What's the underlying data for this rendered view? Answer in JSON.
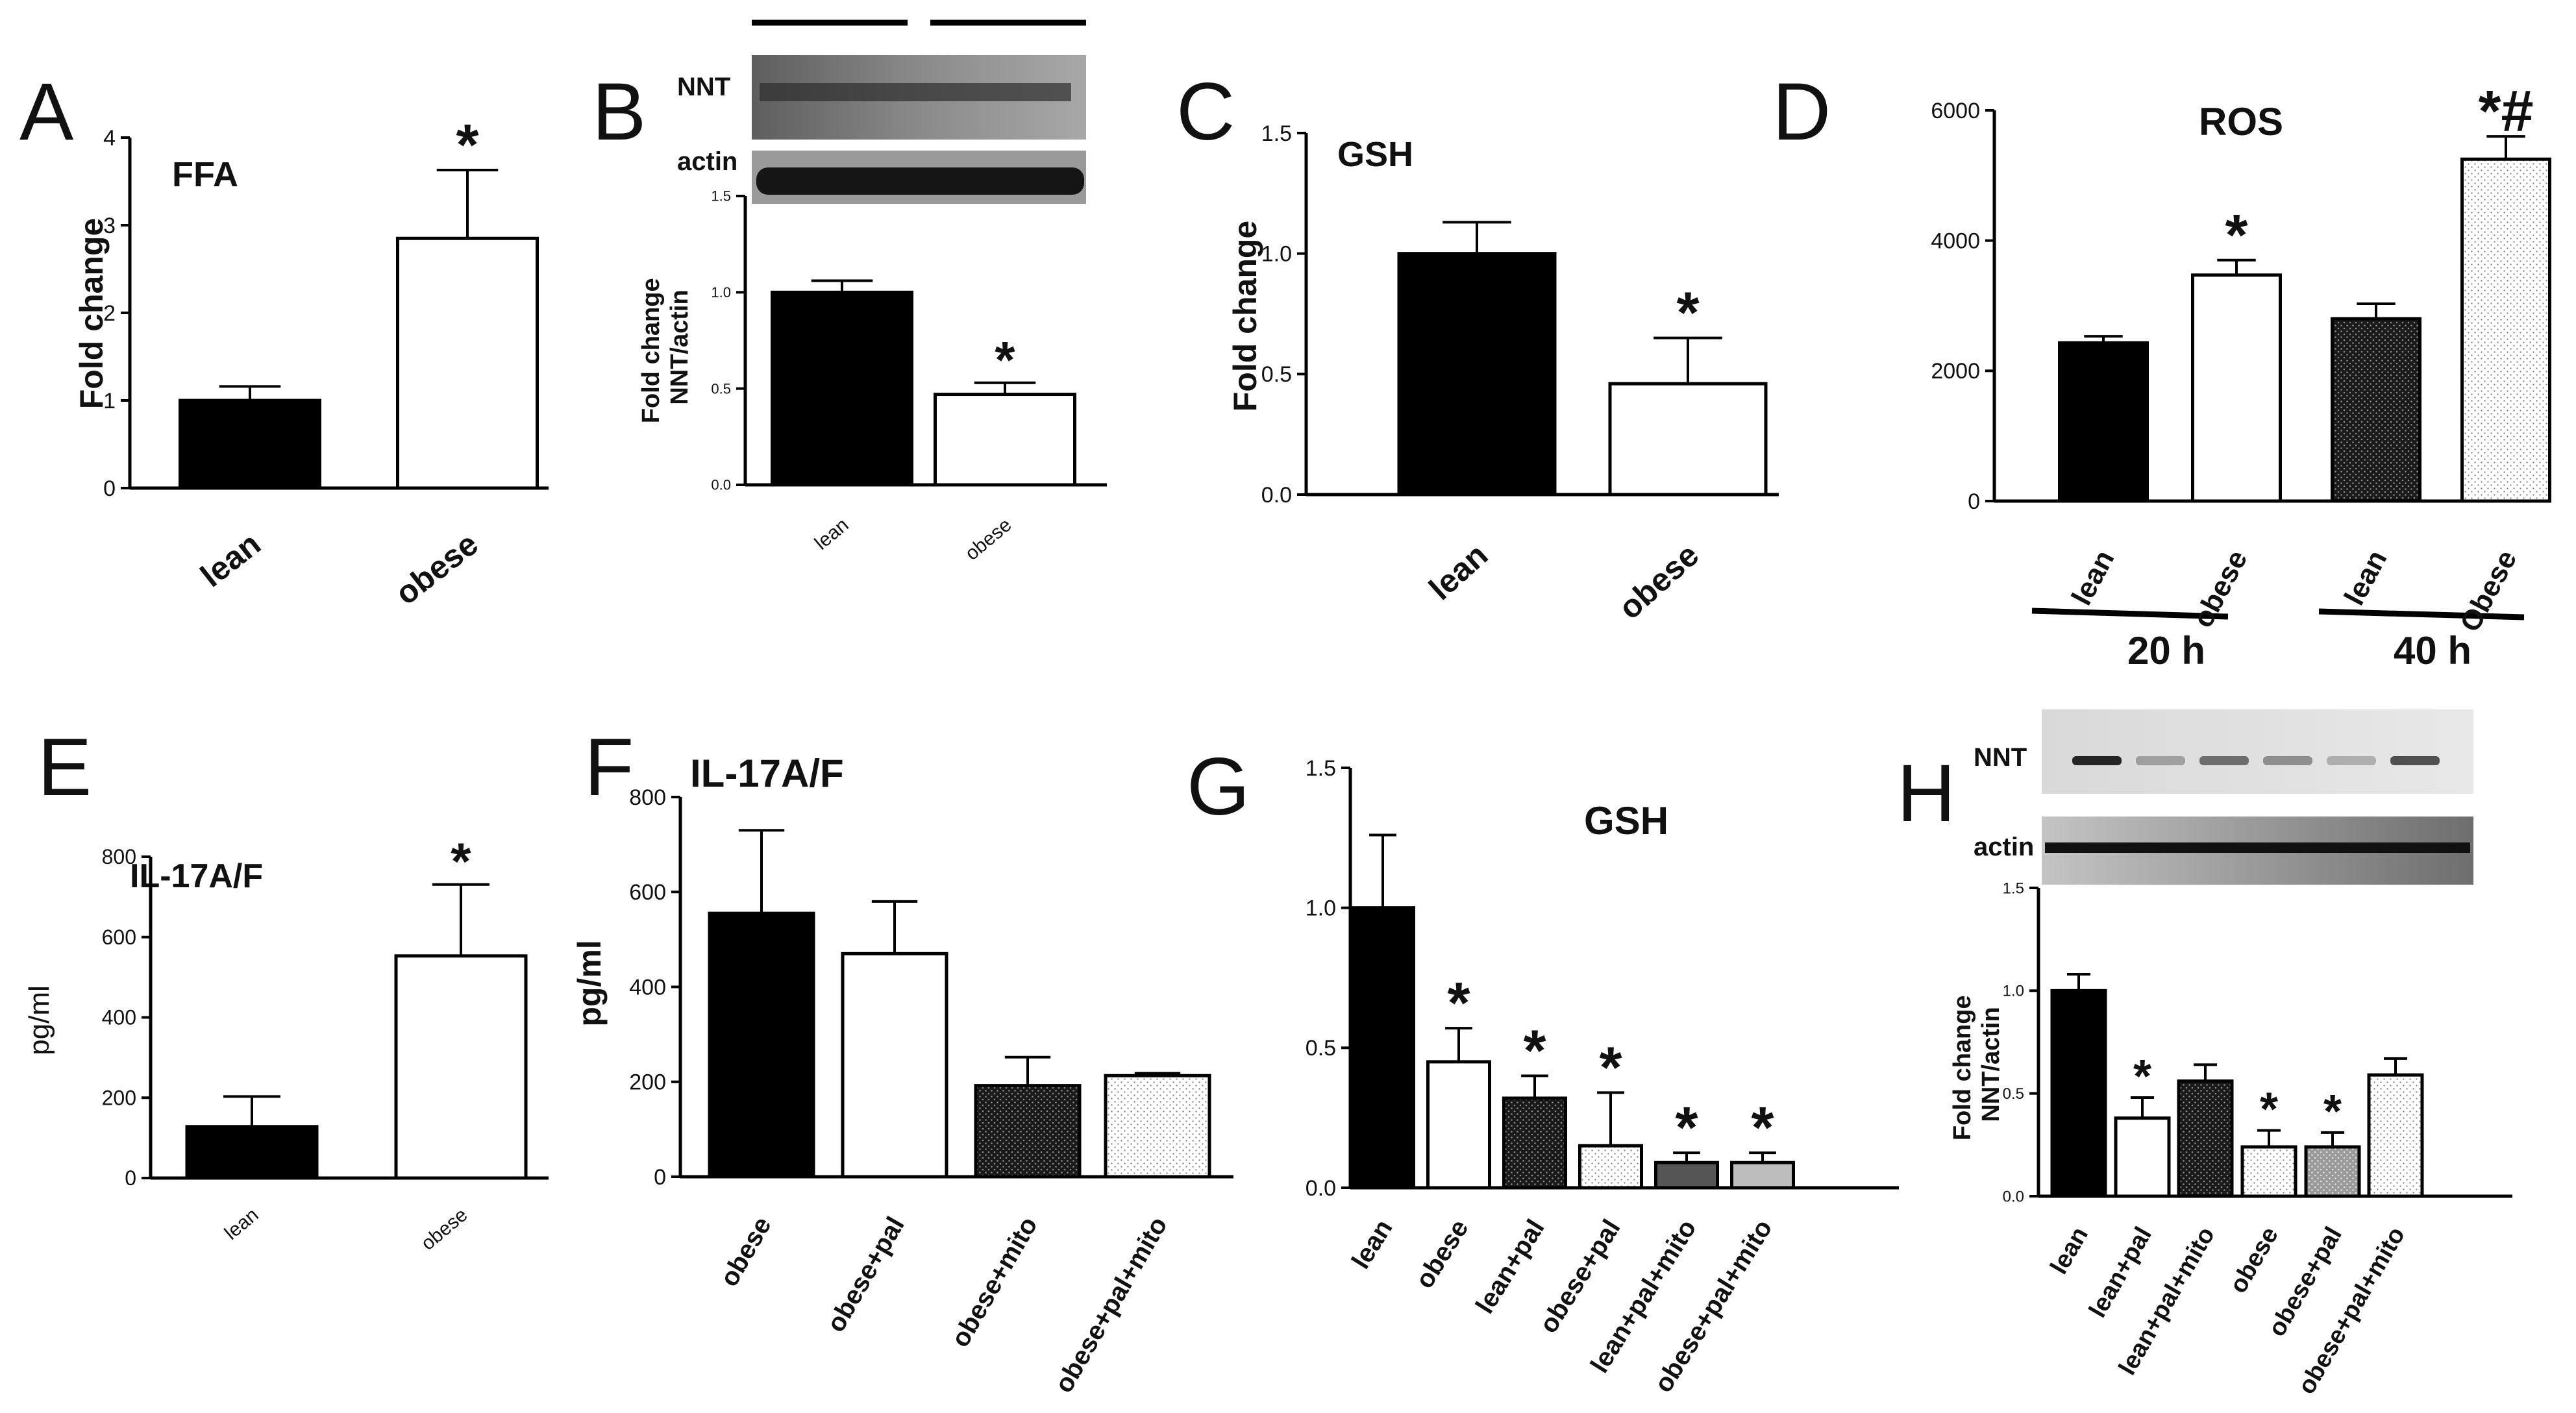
{
  "chart_data": [
    {
      "id": "A",
      "panel_letter": "A",
      "type": "bar",
      "title": "FFA",
      "xlabel": "",
      "ylabel": "Fold change",
      "ylim": [
        0,
        4
      ],
      "yticks": [
        "0",
        "1",
        "2",
        "3",
        "4"
      ],
      "ytick_values": [
        0,
        1,
        2,
        3,
        4
      ],
      "categories": [
        "lean",
        "obese"
      ],
      "values": [
        1.0,
        2.85
      ],
      "errors": [
        0.16,
        0.78
      ],
      "fills": [
        "solid",
        "open"
      ],
      "annotations": [
        "",
        "*"
      ]
    },
    {
      "id": "B",
      "panel_letter": "B",
      "type": "bar",
      "title": "",
      "xlabel": "",
      "ylabel": "Fold change NNT/actin",
      "ylabel_lines": [
        "Fold change",
        "NNT/actin"
      ],
      "ylim": [
        0,
        1.5
      ],
      "yticks": [
        "0.0",
        "0.5",
        "1.0",
        "1.5"
      ],
      "ytick_values": [
        0,
        0.5,
        1.0,
        1.5
      ],
      "categories": [
        "lean",
        "obese"
      ],
      "values": [
        1.0,
        0.47
      ],
      "errors": [
        0.06,
        0.06
      ],
      "fills": [
        "solid",
        "open"
      ],
      "annotations": [
        "",
        "*"
      ],
      "blot_labels": [
        "NNT",
        "actin"
      ]
    },
    {
      "id": "C",
      "panel_letter": "C",
      "type": "bar",
      "title": "GSH",
      "xlabel": "",
      "ylabel": "Fold change",
      "ylim": [
        0,
        1.5
      ],
      "yticks": [
        "0.0",
        "0.5",
        "1.0",
        "1.5"
      ],
      "ytick_values": [
        0,
        0.5,
        1.0,
        1.5
      ],
      "categories": [
        "lean",
        "obese"
      ],
      "values": [
        1.0,
        0.46
      ],
      "errors": [
        0.13,
        0.19
      ],
      "fills": [
        "solid",
        "open"
      ],
      "annotations": [
        "",
        "*"
      ]
    },
    {
      "id": "D",
      "panel_letter": "D",
      "type": "bar",
      "title": "ROS",
      "xlabel": "",
      "ylabel": "",
      "ylim": [
        0,
        6000
      ],
      "yticks": [
        "0",
        "2000",
        "4000",
        "6000"
      ],
      "ytick_values": [
        0,
        2000,
        4000,
        6000
      ],
      "categories": [
        "lean",
        "obese",
        "lean",
        "Obese"
      ],
      "values": [
        2430,
        3470,
        2800,
        5250
      ],
      "errors": [
        100,
        230,
        230,
        350
      ],
      "fills": [
        "solid",
        "open",
        "dark-dots",
        "light-dots"
      ],
      "annotations": [
        "",
        "*",
        "",
        "*#"
      ],
      "groups": [
        "20 h",
        "40 h"
      ]
    },
    {
      "id": "E",
      "panel_letter": "E",
      "type": "bar",
      "title": "IL-17A/F",
      "xlabel": "",
      "ylabel": "pg/ml",
      "ylim": [
        0,
        800
      ],
      "yticks": [
        "0",
        "200",
        "400",
        "600",
        "800"
      ],
      "ytick_values": [
        0,
        200,
        400,
        600,
        800
      ],
      "categories": [
        "lean",
        "obese"
      ],
      "values": [
        128,
        553
      ],
      "errors": [
        75,
        178
      ],
      "fills": [
        "solid",
        "open"
      ],
      "annotations": [
        "",
        "*"
      ]
    },
    {
      "id": "F",
      "panel_letter": "F",
      "type": "bar",
      "title": "IL-17A/F",
      "xlabel": "",
      "ylabel": "pg/ml",
      "ylim": [
        0,
        800
      ],
      "yticks": [
        "0",
        "200",
        "400",
        "600",
        "800"
      ],
      "ytick_values": [
        0,
        200,
        400,
        600,
        800
      ],
      "categories": [
        "obese",
        "obese+pal",
        "obese+mito",
        "obese+pal+mito"
      ],
      "values": [
        555,
        470,
        192,
        213
      ],
      "errors": [
        175,
        110,
        60,
        5
      ],
      "fills": [
        "solid",
        "open",
        "dark-dots",
        "light-dots"
      ],
      "annotations": [
        "",
        "",
        "",
        ""
      ]
    },
    {
      "id": "G",
      "panel_letter": "G",
      "type": "bar",
      "title": "GSH",
      "xlabel": "",
      "ylabel": "",
      "ylim": [
        0,
        1.5
      ],
      "yticks": [
        "0.0",
        "0.5",
        "1.0",
        "1.5"
      ],
      "ytick_values": [
        0,
        0.5,
        1.0,
        1.5
      ],
      "categories": [
        "lean",
        "obese",
        "lean+pal",
        "obese+pal",
        "lean+pal+mito",
        "obese+pal+mito"
      ],
      "values": [
        1.0,
        0.45,
        0.32,
        0.15,
        0.09,
        0.09
      ],
      "errors": [
        0.26,
        0.12,
        0.08,
        0.19,
        0.035,
        0.035
      ],
      "fills": [
        "solid",
        "open",
        "dark-dots",
        "light-dots",
        "gray",
        "light-gray"
      ],
      "annotations": [
        "",
        "*",
        "*",
        "*",
        "*",
        "*"
      ]
    },
    {
      "id": "H",
      "panel_letter": "H",
      "type": "bar",
      "title": "",
      "xlabel": "",
      "ylabel": "Fold change NNT/actin",
      "ylabel_lines": [
        "Fold change",
        "NNT/actin"
      ],
      "ylim": [
        0,
        1.5
      ],
      "yticks": [
        "0.0",
        "0.5",
        "1.0",
        "1.5"
      ],
      "ytick_values": [
        0,
        0.5,
        1.0,
        1.5
      ],
      "categories": [
        "lean",
        "lean+pal",
        "lean+pal+mito",
        "obese",
        "obese+pal",
        "obese+pal+mito"
      ],
      "values": [
        1.0,
        0.38,
        0.56,
        0.24,
        0.24,
        0.59
      ],
      "errors": [
        0.08,
        0.1,
        0.08,
        0.08,
        0.07,
        0.08
      ],
      "fills": [
        "solid",
        "open",
        "dark-dots",
        "light-dots",
        "mid-dots",
        "light-dots"
      ],
      "annotations": [
        "",
        "*",
        "",
        "*",
        "*",
        ""
      ],
      "blot_labels": [
        "NNT",
        "actin"
      ]
    }
  ]
}
